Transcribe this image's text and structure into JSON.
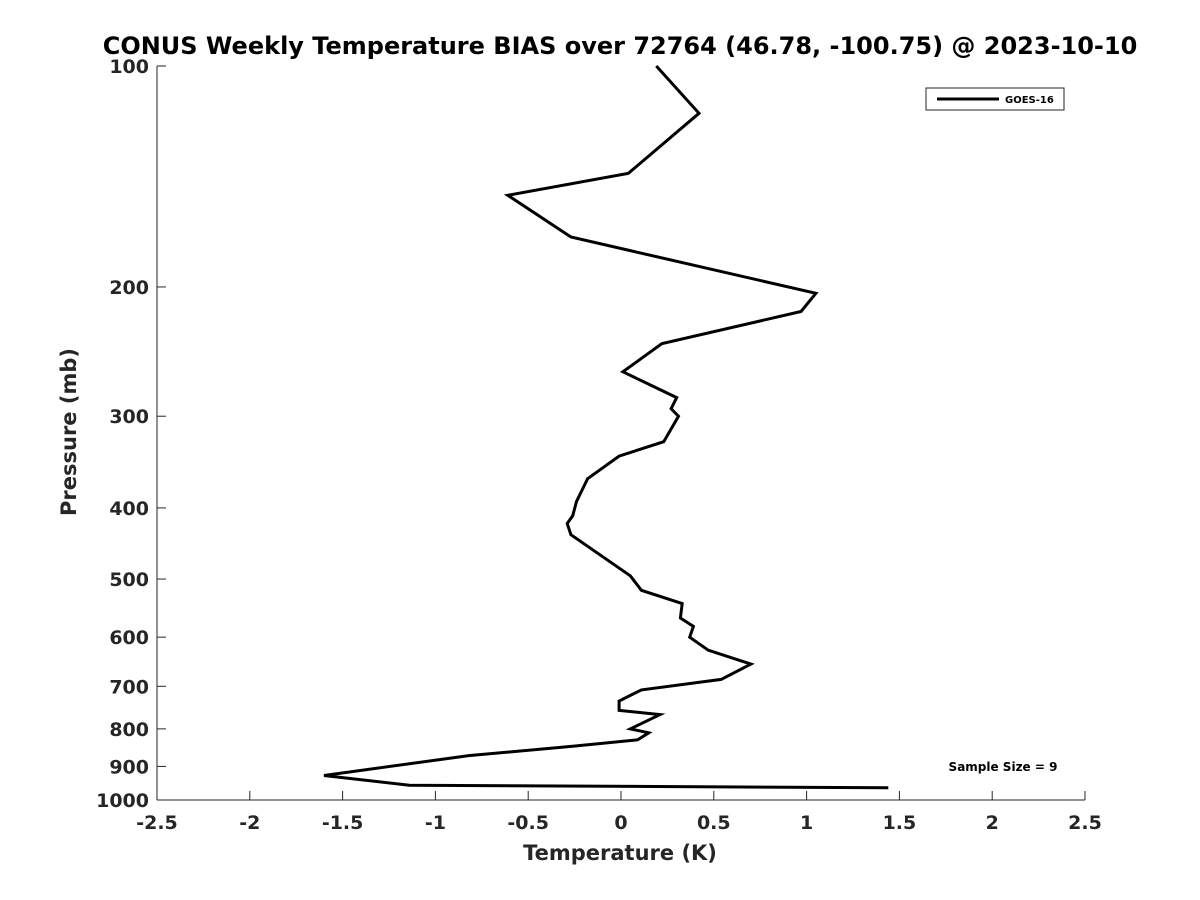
{
  "chart_data": {
    "type": "line",
    "title": "CONUS Weekly Temperature BIAS over 72764 (46.78, -100.75) @ 2023-10-10",
    "xlabel": "Temperature (K)",
    "ylabel": "Pressure (mb)",
    "xlim": [
      -2.5,
      2.5
    ],
    "ylim": [
      100,
      1000
    ],
    "y_scale": "log",
    "y_reversed": true,
    "grid": false,
    "legend_position": "top-right",
    "x_ticks": [
      "-2.5",
      "-2",
      "-1.5",
      "-1",
      "-0.5",
      "0",
      "0.5",
      "1",
      "1.5",
      "2",
      "2.5"
    ],
    "y_ticks": [
      "100",
      "200",
      "300",
      "400",
      "500",
      "600",
      "700",
      "800",
      "900",
      "1000"
    ],
    "series": [
      {
        "name": "GOES-16",
        "color": "#000000",
        "x": [
          0.19,
          0.42,
          0.04,
          -0.61,
          -0.27,
          1.05,
          0.97,
          0.22,
          0.01,
          0.3,
          0.27,
          0.31,
          0.23,
          -0.01,
          -0.18,
          -0.24,
          -0.26,
          -0.29,
          -0.27,
          0.05,
          0.11,
          0.33,
          0.32,
          0.39,
          0.37,
          0.47,
          0.7,
          0.54,
          0.11,
          -0.01,
          -0.01,
          0.21,
          0.05,
          0.15,
          0.09,
          -0.26,
          -0.82,
          -1.6,
          -1.14,
          1.44
        ],
        "y": [
          100,
          116,
          140,
          150,
          171,
          204,
          216,
          239,
          261,
          283,
          293,
          300,
          325,
          340,
          365,
          392,
          410,
          420,
          435,
          495,
          518,
          540,
          565,
          580,
          600,
          625,
          653,
          685,
          708,
          733,
          755,
          765,
          800,
          810,
          828,
          845,
          870,
          926,
          955,
          962
        ]
      }
    ],
    "annotations": [
      "Sample Size = 9"
    ]
  }
}
